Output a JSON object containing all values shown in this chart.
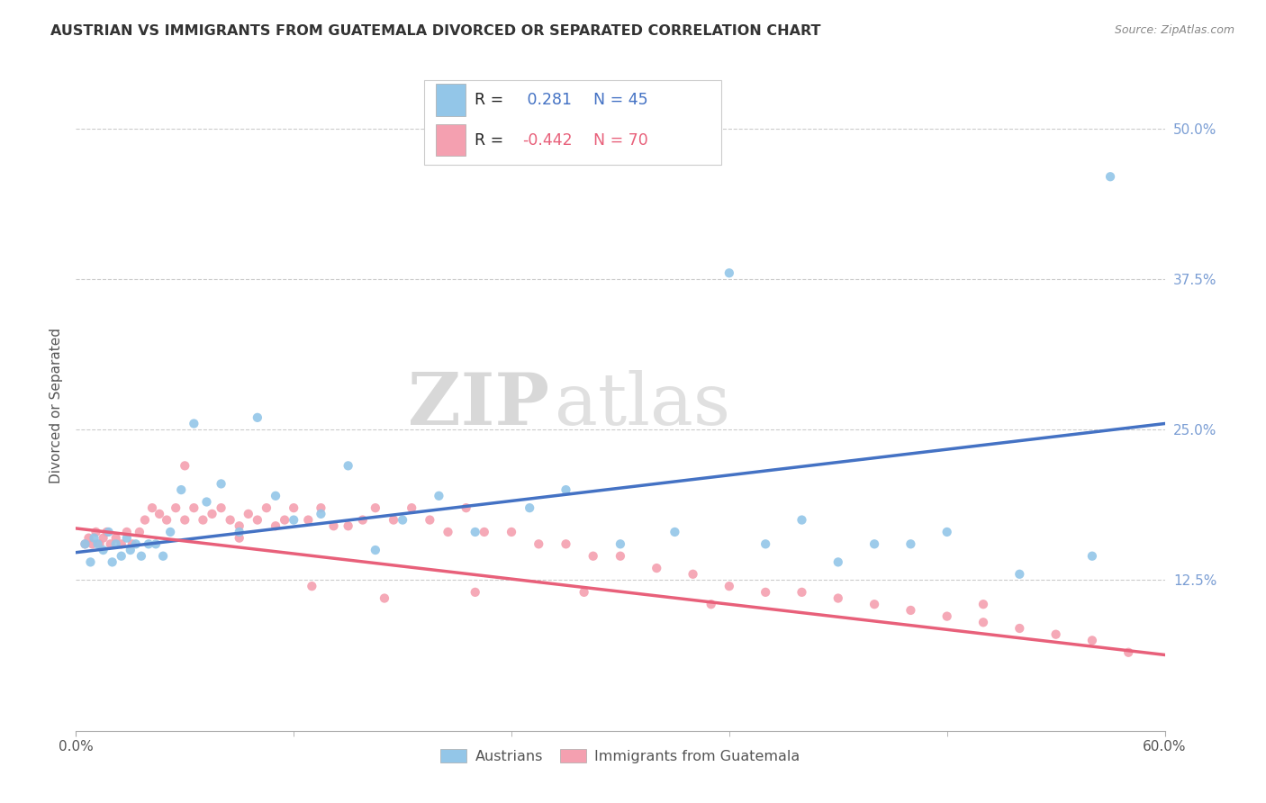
{
  "title": "AUSTRIAN VS IMMIGRANTS FROM GUATEMALA DIVORCED OR SEPARATED CORRELATION CHART",
  "source": "Source: ZipAtlas.com",
  "ylabel": "Divorced or Separated",
  "xlim": [
    0.0,
    0.6
  ],
  "ylim": [
    0.0,
    0.54
  ],
  "ytick_values": [
    0.125,
    0.25,
    0.375,
    0.5
  ],
  "xtick_only_ends": true,
  "austrians_R": "0.281",
  "austrians_N": "45",
  "guatemala_R": "-0.442",
  "guatemala_N": "70",
  "color_austrians": "#93C6E8",
  "color_guatemala": "#F4A0B0",
  "color_line_austrians": "#4472C4",
  "color_line_guatemala": "#E8607A",
  "marker_size": 55,
  "austrians_x": [
    0.005,
    0.008,
    0.01,
    0.012,
    0.015,
    0.018,
    0.02,
    0.022,
    0.025,
    0.028,
    0.03,
    0.033,
    0.036,
    0.04,
    0.044,
    0.048,
    0.052,
    0.058,
    0.065,
    0.072,
    0.08,
    0.09,
    0.1,
    0.11,
    0.12,
    0.135,
    0.15,
    0.165,
    0.18,
    0.2,
    0.22,
    0.25,
    0.27,
    0.3,
    0.33,
    0.36,
    0.38,
    0.4,
    0.42,
    0.44,
    0.46,
    0.48,
    0.52,
    0.56,
    0.57
  ],
  "austrians_y": [
    0.155,
    0.14,
    0.16,
    0.155,
    0.15,
    0.165,
    0.14,
    0.155,
    0.145,
    0.16,
    0.15,
    0.155,
    0.145,
    0.155,
    0.155,
    0.145,
    0.165,
    0.2,
    0.255,
    0.19,
    0.205,
    0.165,
    0.26,
    0.195,
    0.175,
    0.18,
    0.22,
    0.15,
    0.175,
    0.195,
    0.165,
    0.185,
    0.2,
    0.155,
    0.165,
    0.38,
    0.155,
    0.175,
    0.14,
    0.155,
    0.155,
    0.165,
    0.13,
    0.145,
    0.46
  ],
  "guatemala_x": [
    0.005,
    0.007,
    0.009,
    0.011,
    0.013,
    0.015,
    0.017,
    0.019,
    0.022,
    0.025,
    0.028,
    0.031,
    0.035,
    0.038,
    0.042,
    0.046,
    0.05,
    0.055,
    0.06,
    0.065,
    0.07,
    0.075,
    0.08,
    0.085,
    0.09,
    0.095,
    0.1,
    0.105,
    0.11,
    0.115,
    0.12,
    0.128,
    0.135,
    0.142,
    0.15,
    0.158,
    0.165,
    0.175,
    0.185,
    0.195,
    0.205,
    0.215,
    0.225,
    0.24,
    0.255,
    0.27,
    0.285,
    0.3,
    0.32,
    0.34,
    0.36,
    0.38,
    0.4,
    0.42,
    0.44,
    0.46,
    0.48,
    0.5,
    0.52,
    0.54,
    0.56,
    0.58,
    0.06,
    0.09,
    0.13,
    0.17,
    0.22,
    0.28,
    0.35,
    0.5
  ],
  "guatemala_y": [
    0.155,
    0.16,
    0.155,
    0.165,
    0.155,
    0.16,
    0.165,
    0.155,
    0.16,
    0.155,
    0.165,
    0.155,
    0.165,
    0.175,
    0.185,
    0.18,
    0.175,
    0.185,
    0.175,
    0.185,
    0.175,
    0.18,
    0.185,
    0.175,
    0.17,
    0.18,
    0.175,
    0.185,
    0.17,
    0.175,
    0.185,
    0.175,
    0.185,
    0.17,
    0.17,
    0.175,
    0.185,
    0.175,
    0.185,
    0.175,
    0.165,
    0.185,
    0.165,
    0.165,
    0.155,
    0.155,
    0.145,
    0.145,
    0.135,
    0.13,
    0.12,
    0.115,
    0.115,
    0.11,
    0.105,
    0.1,
    0.095,
    0.09,
    0.085,
    0.08,
    0.075,
    0.065,
    0.22,
    0.16,
    0.12,
    0.11,
    0.115,
    0.115,
    0.105,
    0.105
  ],
  "aus_line_x0": 0.0,
  "aus_line_y0": 0.148,
  "aus_line_x1": 0.6,
  "aus_line_y1": 0.255,
  "guat_line_x0": 0.0,
  "guat_line_y0": 0.168,
  "guat_line_x1": 0.6,
  "guat_line_y1": 0.063,
  "watermark_zip": "ZIP",
  "watermark_atlas": "atlas",
  "bg_color": "#FFFFFF"
}
